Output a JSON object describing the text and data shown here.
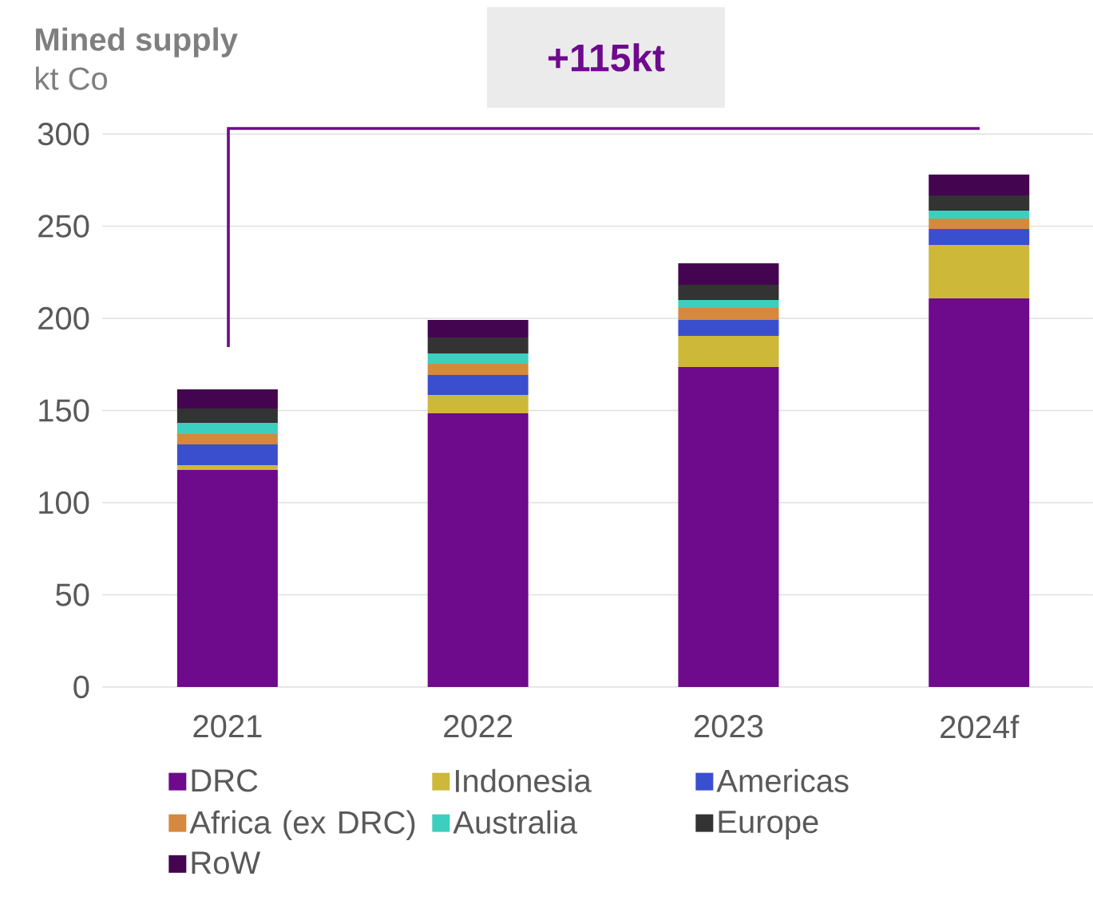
{
  "chart_data": {
    "type": "bar",
    "title": "Mined supply",
    "subtitle": "kt Co",
    "annotations": [
      "+115kt"
    ],
    "categories": [
      "2021",
      "2022",
      "2023",
      "2024f"
    ],
    "stacked": true,
    "grid": "y",
    "legend": "bottom",
    "ylim": [
      0,
      300
    ],
    "yticks": [
      0,
      50,
      100,
      150,
      200,
      250,
      300
    ],
    "series": [
      {
        "name": "DRC",
        "color": "#6e0a8c",
        "values": [
          117.7,
          148.5,
          173.6,
          210.8
        ]
      },
      {
        "name": "Indonesia",
        "color": "#cdb83a",
        "values": [
          2.6,
          9.9,
          16.9,
          29.0
        ]
      },
      {
        "name": "Americas",
        "color": "#3a4fce",
        "values": [
          11.3,
          10.9,
          8.6,
          8.7
        ]
      },
      {
        "name": "Africa (ex DRC)",
        "color": "#d5883e",
        "values": [
          5.6,
          6.0,
          6.5,
          5.6
        ]
      },
      {
        "name": "Australia",
        "color": "#3ccfc0",
        "values": [
          6.1,
          5.7,
          4.4,
          4.3
        ]
      },
      {
        "name": "Europe",
        "color": "#333333",
        "values": [
          7.8,
          8.6,
          8.2,
          8.3
        ]
      },
      {
        "name": "RoW",
        "color": "#440550",
        "values": [
          10.4,
          9.5,
          11.7,
          11.3
        ]
      }
    ]
  }
}
